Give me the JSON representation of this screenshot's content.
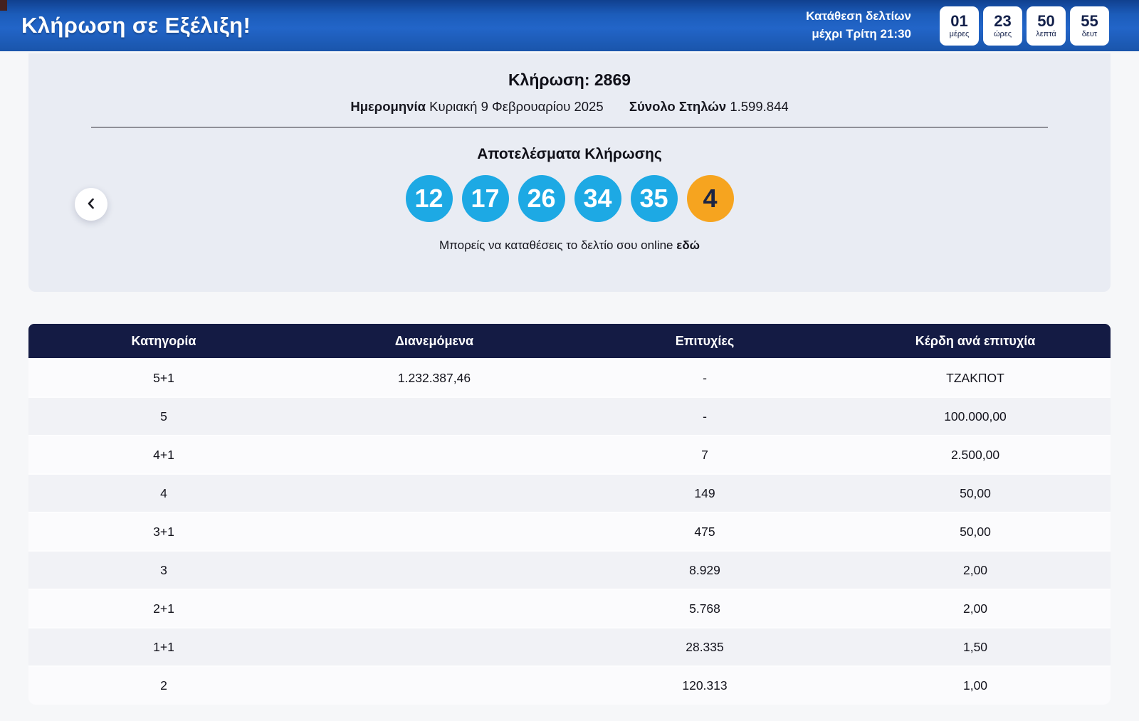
{
  "banner": {
    "title": "Κλήρωση σε Εξέλιξη!",
    "deadline": "Κατάθεση δελτίων\nμέχρι Τρίτη 21:30",
    "countdown": [
      {
        "value": "01",
        "label": "μέρες"
      },
      {
        "value": "23",
        "label": "ώρες"
      },
      {
        "value": "50",
        "label": "λεπτά"
      },
      {
        "value": "55",
        "label": "δευτ"
      }
    ]
  },
  "draw": {
    "title": "Κλήρωση: 2869",
    "date_label": "Ημερομηνία",
    "date_value": "Κυριακή 9 Φεβρουαρίου 2025",
    "columns_label": "Σύνολο Στηλών",
    "columns_value": "1.599.844",
    "results_title": "Αποτελέσματα Κλήρωσης",
    "numbers": [
      "12",
      "17",
      "26",
      "34",
      "35"
    ],
    "joker": "4",
    "online_text": "Μπορείς να καταθέσεις το δελτίο σου online",
    "online_link": "εδώ"
  },
  "table": {
    "headers": [
      "Κατηγορία",
      "Διανεμόμενα",
      "Επιτυχίες",
      "Κέρδη ανά επιτυχία"
    ],
    "rows": [
      [
        "5+1",
        "1.232.387,46",
        "-",
        "ΤΖΑΚΠΟΤ"
      ],
      [
        "5",
        "",
        "-",
        "100.000,00"
      ],
      [
        "4+1",
        "",
        "7",
        "2.500,00"
      ],
      [
        "4",
        "",
        "149",
        "50,00"
      ],
      [
        "3+1",
        "",
        "475",
        "50,00"
      ],
      [
        "3",
        "",
        "8.929",
        "2,00"
      ],
      [
        "2+1",
        "",
        "5.768",
        "2,00"
      ],
      [
        "1+1",
        "",
        "28.335",
        "1,50"
      ],
      [
        "2",
        "",
        "120.313",
        "1,00"
      ]
    ]
  },
  "colors": {
    "banner_blue": "#2265c8",
    "table_header_navy": "#141b44",
    "ball_blue": "#1da9e4",
    "ball_orange": "#f6a41f"
  }
}
